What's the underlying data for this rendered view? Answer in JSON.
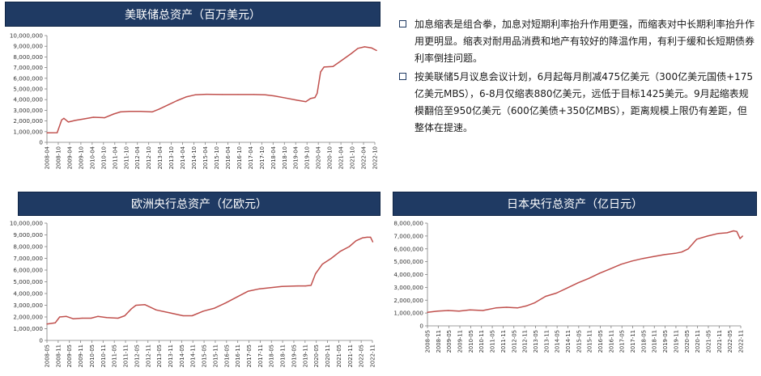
{
  "bullets": [
    "加息缩表是组合拳，加息对短期利率抬升作用更强，而缩表对中长期利率抬升作用更明显。缩表对耐用品消费和地产有较好的降温作用，有利于缓和长短期债券利率倒挂问题。",
    "按美联储5月议息会议计划，6月起每月削减475亿美元（300亿美元国债+175亿美元MBS），6-8月仅缩表880亿美元，远低于目标1425美元。9月起缩表规模翻倍至950亿美元（600亿美债+350亿MBS），距离规模上限仍有差距，但整体在提速。"
  ],
  "colors": {
    "line": "#c0504d",
    "title_bg": "#1f3a63",
    "axis": "#7f7f7f"
  },
  "chart_data": [
    {
      "type": "line",
      "title": "美联储总资产（百万美元）",
      "ylim": [
        0,
        10000000
      ],
      "yticks": [
        "0",
        "1,000,000",
        "2,000,000",
        "3,000,000",
        "4,000,000",
        "5,000,000",
        "6,000,000",
        "7,000,000",
        "8,000,000",
        "9,000,000",
        "10,000,000"
      ],
      "xticks": [
        "2008-04",
        "2008-10",
        "2009-04",
        "2009-10",
        "2010-04",
        "2010-10",
        "2011-04",
        "2011-10",
        "2012-04",
        "2012-10",
        "2013-04",
        "2013-10",
        "2014-04",
        "2014-10",
        "2015-04",
        "2015-10",
        "2016-04",
        "2016-10",
        "2017-04",
        "2017-10",
        "2018-04",
        "2018-10",
        "2019-04",
        "2019-10",
        "2020-04",
        "2020-10",
        "2021-04",
        "2021-10",
        "2022-04",
        "2022-10"
      ],
      "x": [
        2008.25,
        2008.7,
        2008.9,
        2009.0,
        2009.2,
        2009.5,
        2009.9,
        2010.3,
        2010.8,
        2011.2,
        2011.5,
        2011.9,
        2012.4,
        2012.9,
        2013.2,
        2013.6,
        2014.0,
        2014.4,
        2014.8,
        2015.3,
        2016.0,
        2016.7,
        2017.4,
        2017.9,
        2018.3,
        2018.8,
        2019.3,
        2019.7,
        2019.9,
        2020.1,
        2020.2,
        2020.35,
        2020.5,
        2020.9,
        2021.3,
        2021.7,
        2022.0,
        2022.3,
        2022.6,
        2022.83
      ],
      "y": [
        890000,
        900000,
        2100000,
        2250000,
        1900000,
        2050000,
        2200000,
        2350000,
        2300000,
        2650000,
        2850000,
        2900000,
        2900000,
        2850000,
        3100000,
        3500000,
        3900000,
        4250000,
        4450000,
        4500000,
        4480000,
        4480000,
        4480000,
        4450000,
        4350000,
        4150000,
        3950000,
        3800000,
        4100000,
        4200000,
        4600000,
        6600000,
        7050000,
        7100000,
        7700000,
        8300000,
        8800000,
        8950000,
        8850000,
        8600000
      ]
    },
    {
      "type": "line",
      "title": "欧洲央行总资产（亿欧元）",
      "ylim": [
        0,
        10000000
      ],
      "yticks": [
        "0",
        "1,000,000",
        "2,000,000",
        "3,000,000",
        "4,000,000",
        "5,000,000",
        "6,000,000",
        "7,000,000",
        "8,000,000",
        "9,000,000",
        "10,000,000"
      ],
      "xticks": [
        "2008-05",
        "2008-11",
        "2009-05",
        "2009-11",
        "2010-05",
        "2010-11",
        "2011-05",
        "2011-11",
        "2012-05",
        "2012-11",
        "2013-05",
        "2013-11",
        "2014-05",
        "2014-11",
        "2015-05",
        "2015-11",
        "2016-05",
        "2016-11",
        "2017-05",
        "2017-11",
        "2018-05",
        "2018-11",
        "2019-05",
        "2019-11",
        "2020-05",
        "2020-11",
        "2021-05",
        "2021-11",
        "2022-05",
        "2022-11"
      ],
      "x": [
        2008.33,
        2008.7,
        2008.9,
        2009.2,
        2009.5,
        2009.9,
        2010.3,
        2010.6,
        2011.0,
        2011.5,
        2011.8,
        2012.1,
        2012.3,
        2012.7,
        2013.2,
        2013.8,
        2014.4,
        2014.8,
        2015.3,
        2015.8,
        2016.3,
        2016.8,
        2017.3,
        2017.8,
        2018.3,
        2018.8,
        2019.5,
        2019.85,
        2020.1,
        2020.3,
        2020.6,
        2021.0,
        2021.4,
        2021.8,
        2022.1,
        2022.4,
        2022.6,
        2022.75,
        2022.85
      ],
      "y": [
        1400000,
        1500000,
        2000000,
        2050000,
        1850000,
        1900000,
        1900000,
        2050000,
        1950000,
        1900000,
        2100000,
        2700000,
        3000000,
        3050000,
        2600000,
        2350000,
        2100000,
        2100000,
        2500000,
        2750000,
        3200000,
        3700000,
        4200000,
        4400000,
        4500000,
        4600000,
        4650000,
        4650000,
        4700000,
        5700000,
        6500000,
        7000000,
        7600000,
        8000000,
        8500000,
        8750000,
        8800000,
        8800000,
        8400000
      ]
    },
    {
      "type": "line",
      "title": "日本央行总资产（亿日元）",
      "ylim": [
        0,
        8000000
      ],
      "yticks": [
        "0",
        "1,000,000",
        "2,000,000",
        "3,000,000",
        "4,000,000",
        "5,000,000",
        "6,000,000",
        "7,000,000",
        "8,000,000"
      ],
      "xticks": [
        "2008-05",
        "2008-11",
        "2009-05",
        "2009-11",
        "2010-05",
        "2010-11",
        "2011-05",
        "2011-11",
        "2012-05",
        "2012-11",
        "2013-05",
        "2013-11",
        "2014-05",
        "2014-11",
        "2015-05",
        "2015-11",
        "2016-05",
        "2016-11",
        "2017-05",
        "2017-11",
        "2018-05",
        "2018-11",
        "2019-05",
        "2019-11",
        "2020-05",
        "2020-11",
        "2021-05",
        "2021-11",
        "2022-05",
        "2022-11"
      ],
      "x": [
        2008.33,
        2008.8,
        2009.3,
        2009.8,
        2010.3,
        2010.9,
        2011.5,
        2012.0,
        2012.5,
        2012.9,
        2013.3,
        2013.8,
        2014.3,
        2014.8,
        2015.3,
        2015.8,
        2016.3,
        2016.8,
        2017.3,
        2017.8,
        2018.3,
        2018.8,
        2019.3,
        2019.8,
        2020.1,
        2020.4,
        2020.8,
        2021.3,
        2021.8,
        2022.2,
        2022.5,
        2022.65,
        2022.8,
        2022.92
      ],
      "y": [
        1050000,
        1150000,
        1200000,
        1150000,
        1250000,
        1200000,
        1400000,
        1450000,
        1400000,
        1550000,
        1800000,
        2300000,
        2550000,
        2950000,
        3350000,
        3700000,
        4100000,
        4450000,
        4800000,
        5050000,
        5250000,
        5400000,
        5550000,
        5650000,
        5750000,
        6000000,
        6750000,
        7000000,
        7200000,
        7250000,
        7400000,
        7350000,
        6800000,
        7000000
      ]
    }
  ]
}
